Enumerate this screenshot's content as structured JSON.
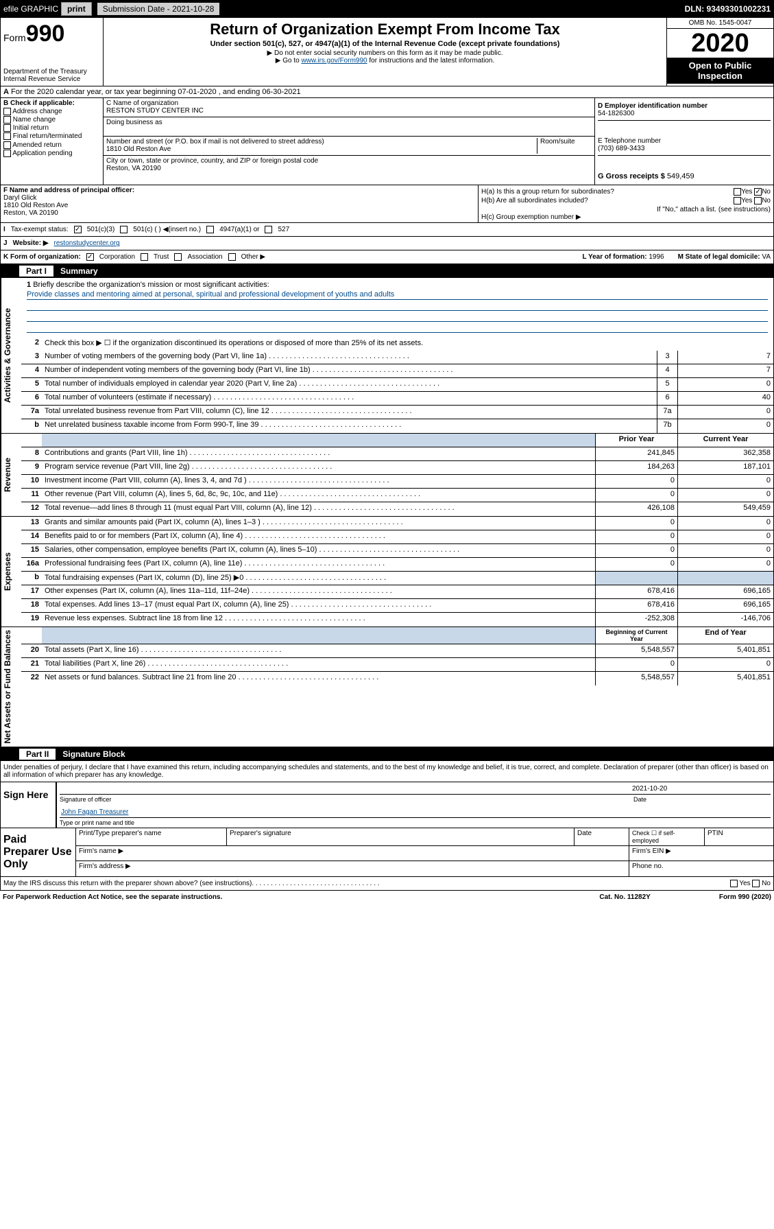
{
  "topbar": {
    "efile_label": "efile GRAPHIC",
    "print_label": "print",
    "submission_label": "Submission Date - 2021-10-28",
    "dln": "DLN: 93493301002231"
  },
  "header": {
    "form_prefix": "Form",
    "form_number": "990",
    "dept1": "Department of the Treasury",
    "dept2": "Internal Revenue Service",
    "title": "Return of Organization Exempt From Income Tax",
    "subtitle": "Under section 501(c), 527, or 4947(a)(1) of the Internal Revenue Code (except private foundations)",
    "note1": "▶ Do not enter social security numbers on this form as it may be made public.",
    "note2_prefix": "▶ Go to ",
    "note2_link": "www.irs.gov/Form990",
    "note2_suffix": " for instructions and the latest information.",
    "omb": "OMB No. 1545-0047",
    "year": "2020",
    "open_public": "Open to Public Inspection"
  },
  "lineA": "For the 2020 calendar year, or tax year beginning 07-01-2020   , and ending 06-30-2021",
  "sectionB": {
    "label": "B Check if applicable:",
    "items": [
      "Address change",
      "Name change",
      "Initial return",
      "Final return/terminated",
      "Amended return",
      "Application pending"
    ]
  },
  "sectionC": {
    "name_label": "C Name of organization",
    "name": "RESTON STUDY CENTER INC",
    "dba_label": "Doing business as",
    "addr_label": "Number and street (or P.O. box if mail is not delivered to street address)",
    "room_label": "Room/suite",
    "addr": "1810 Old Reston Ave",
    "city_label": "City or town, state or province, country, and ZIP or foreign postal code",
    "city": "Reston, VA  20190"
  },
  "sectionD": {
    "ein_label": "D Employer identification number",
    "ein": "54-1826300",
    "phone_label": "E Telephone number",
    "phone": "(703) 689-3433",
    "gross_label": "G Gross receipts $",
    "gross": "549,459"
  },
  "sectionF": {
    "label": "F  Name and address of principal officer:",
    "name": "Daryl Glick",
    "addr1": "1810 Old Reston Ave",
    "addr2": "Reston, VA  20190"
  },
  "sectionH": {
    "ha": "H(a)  Is this a group return for subordinates?",
    "hb": "H(b)  Are all subordinates included?",
    "hb_note": "If \"No,\" attach a list. (see instructions)",
    "hc": "H(c)  Group exemption number ▶",
    "yes": "Yes",
    "no": "No"
  },
  "sectionI": {
    "label": "Tax-exempt status:",
    "opts": [
      "501(c)(3)",
      "501(c) (  ) ◀(insert no.)",
      "4947(a)(1) or",
      "527"
    ]
  },
  "sectionJ": {
    "label": "Website: ▶",
    "value": "restonstudycenter.org"
  },
  "sectionK": {
    "label": "K Form of organization:",
    "opts": [
      "Corporation",
      "Trust",
      "Association",
      "Other ▶"
    ],
    "year_label": "L Year of formation:",
    "year": "1996",
    "state_label": "M State of legal domicile:",
    "state": "VA"
  },
  "part1": {
    "part": "Part I",
    "title": "Summary"
  },
  "summary": {
    "side_labels": [
      "Activities & Governance",
      "Revenue",
      "Expenses",
      "Net Assets or Fund Balances"
    ],
    "mission_label": "Briefly describe the organization's mission or most significant activities:",
    "mission_text": "Provide classes and mentoring aimed at personal, spiritual and professional development of youths and adults",
    "line2": "Check this box ▶ ☐  if the organization discontinued its operations or disposed of more than 25% of its net assets.",
    "rows_gov": [
      {
        "n": "3",
        "t": "Number of voting members of the governing body (Part VI, line 1a)",
        "b": "3",
        "v": "7"
      },
      {
        "n": "4",
        "t": "Number of independent voting members of the governing body (Part VI, line 1b)",
        "b": "4",
        "v": "7"
      },
      {
        "n": "5",
        "t": "Total number of individuals employed in calendar year 2020 (Part V, line 2a)",
        "b": "5",
        "v": "0"
      },
      {
        "n": "6",
        "t": "Total number of volunteers (estimate if necessary)",
        "b": "6",
        "v": "40"
      },
      {
        "n": "7a",
        "t": "Total unrelated business revenue from Part VIII, column (C), line 12",
        "b": "7a",
        "v": "0"
      },
      {
        "n": "b",
        "t": "Net unrelated business taxable income from Form 990-T, line 39",
        "b": "7b",
        "v": "0"
      }
    ],
    "prior_label": "Prior Year",
    "current_label": "Current Year",
    "rows_rev": [
      {
        "n": "8",
        "t": "Contributions and grants (Part VIII, line 1h)",
        "p": "241,845",
        "c": "362,358"
      },
      {
        "n": "9",
        "t": "Program service revenue (Part VIII, line 2g)",
        "p": "184,263",
        "c": "187,101"
      },
      {
        "n": "10",
        "t": "Investment income (Part VIII, column (A), lines 3, 4, and 7d )",
        "p": "0",
        "c": "0"
      },
      {
        "n": "11",
        "t": "Other revenue (Part VIII, column (A), lines 5, 6d, 8c, 9c, 10c, and 11e)",
        "p": "0",
        "c": "0"
      },
      {
        "n": "12",
        "t": "Total revenue—add lines 8 through 11 (must equal Part VIII, column (A), line 12)",
        "p": "426,108",
        "c": "549,459"
      }
    ],
    "rows_exp": [
      {
        "n": "13",
        "t": "Grants and similar amounts paid (Part IX, column (A), lines 1–3 )",
        "p": "0",
        "c": "0"
      },
      {
        "n": "14",
        "t": "Benefits paid to or for members (Part IX, column (A), line 4)",
        "p": "0",
        "c": "0"
      },
      {
        "n": "15",
        "t": "Salaries, other compensation, employee benefits (Part IX, column (A), lines 5–10)",
        "p": "0",
        "c": "0"
      },
      {
        "n": "16a",
        "t": "Professional fundraising fees (Part IX, column (A), line 11e)",
        "p": "0",
        "c": "0"
      },
      {
        "n": "b",
        "t": "Total fundraising expenses (Part IX, column (D), line 25) ▶0",
        "p": "",
        "c": "",
        "shaded": true
      },
      {
        "n": "17",
        "t": "Other expenses (Part IX, column (A), lines 11a–11d, 11f–24e)",
        "p": "678,416",
        "c": "696,165"
      },
      {
        "n": "18",
        "t": "Total expenses. Add lines 13–17 (must equal Part IX, column (A), line 25)",
        "p": "678,416",
        "c": "696,165"
      },
      {
        "n": "19",
        "t": "Revenue less expenses. Subtract line 18 from line 12",
        "p": "-252,308",
        "c": "-146,706"
      }
    ],
    "begin_label": "Beginning of Current Year",
    "end_label": "End of Year",
    "rows_net": [
      {
        "n": "20",
        "t": "Total assets (Part X, line 16)",
        "p": "5,548,557",
        "c": "5,401,851"
      },
      {
        "n": "21",
        "t": "Total liabilities (Part X, line 26)",
        "p": "0",
        "c": "0"
      },
      {
        "n": "22",
        "t": "Net assets or fund balances. Subtract line 21 from line 20",
        "p": "5,548,557",
        "c": "5,401,851"
      }
    ]
  },
  "part2": {
    "part": "Part II",
    "title": "Signature Block",
    "perjury": "Under penalties of perjury, I declare that I have examined this return, including accompanying schedules and statements, and to the best of my knowledge and belief, it is true, correct, and complete. Declaration of preparer (other than officer) is based on all information of which preparer has any knowledge."
  },
  "sign": {
    "label": "Sign Here",
    "sig_officer": "Signature of officer",
    "date": "2021-10-20",
    "date_label": "Date",
    "name": "John Fagan Treasurer",
    "name_label": "Type or print name and title"
  },
  "paid": {
    "label": "Paid Preparer Use Only",
    "h1": "Print/Type preparer's name",
    "h2": "Preparer's signature",
    "h3": "Date",
    "h4_check": "Check ☐ if self-employed",
    "h5": "PTIN",
    "firm_name": "Firm's name  ▶",
    "firm_ein": "Firm's EIN ▶",
    "firm_addr": "Firm's address ▶",
    "phone": "Phone no."
  },
  "footer": {
    "discuss": "May the IRS discuss this return with the preparer shown above? (see instructions)",
    "yes": "Yes",
    "no": "No",
    "paperwork": "For Paperwork Reduction Act Notice, see the separate instructions.",
    "cat": "Cat. No. 11282Y",
    "form": "Form 990 (2020)"
  }
}
